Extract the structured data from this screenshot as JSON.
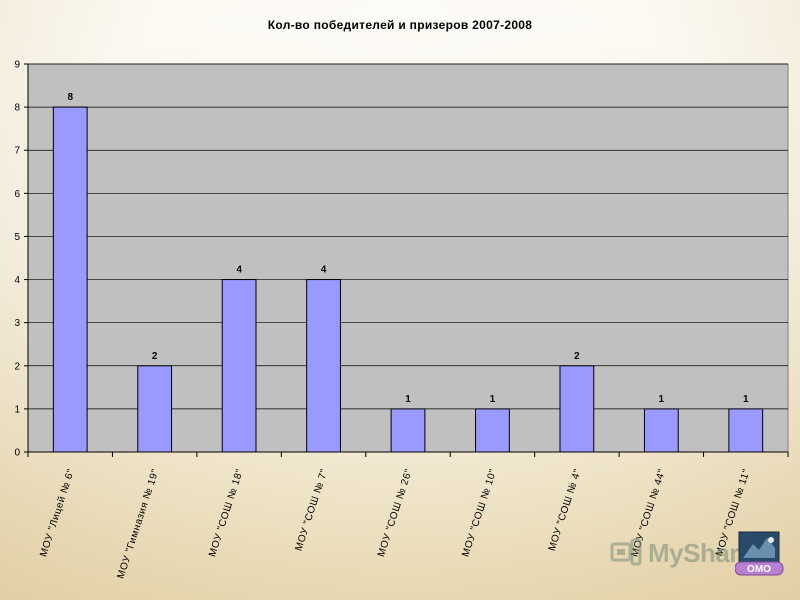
{
  "chart_data": {
    "type": "bar",
    "title": "Кол-во победителей и призеров 2007-2008",
    "xlabel": "",
    "ylabel": "",
    "ylim": [
      0,
      9
    ],
    "yticks": [
      0,
      1,
      2,
      3,
      4,
      5,
      6,
      7,
      8,
      9
    ],
    "grid": true,
    "legend": "none",
    "categories": [
      "МОУ \"Лицей № 6\"",
      "МОУ \"Гимназия № 19\"",
      "МОУ \"СОШ № 18\"",
      "МОУ \"СОШ № 7\"",
      "МОУ \"СОШ № 26\"",
      "МОУ \"СОШ № 10\"",
      "МОУ \"СОШ № 4\"",
      "МОУ \"СОШ № 44\"",
      "МОУ \"СОШ № 11\""
    ],
    "values": [
      8,
      2,
      4,
      4,
      1,
      1,
      2,
      1,
      1
    ],
    "data_labels": [
      "8",
      "2",
      "4",
      "4",
      "1",
      "1",
      "2",
      "1",
      "1"
    ],
    "colors": {
      "bar_fill": "#9999ff",
      "bar_stroke": "#000000",
      "plot_background": "#c0c0c0",
      "gridline": "#000000"
    }
  },
  "watermark": {
    "text": "MyShared",
    "icon": "myshared-logo-icon"
  },
  "logo": {
    "text": "ОМО",
    "icon": "omo-logo-icon"
  }
}
